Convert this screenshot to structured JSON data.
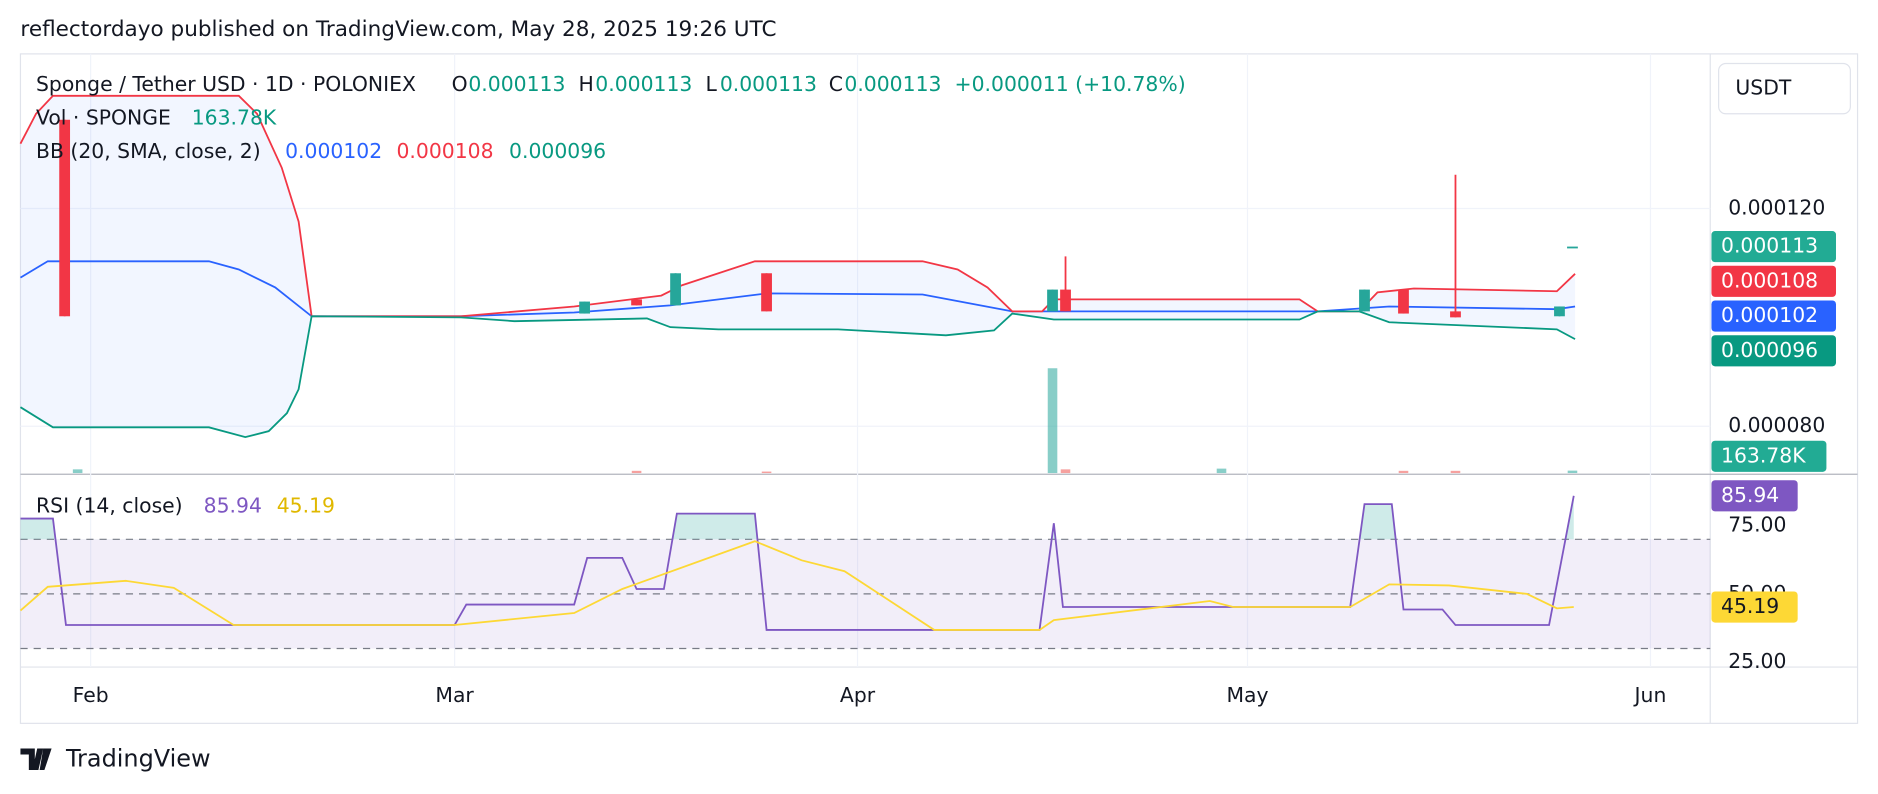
{
  "header": {
    "published": "reflectordayo published on TradingView.com, May 28, 2025 19:26 UTC",
    "logo": "TradingView"
  },
  "chart_data": [
    {
      "type": "candlestick",
      "title": "Sponge / Tether USD · 1D · POLONIEX",
      "currency": "USDT",
      "ohlc_labels": [
        "O",
        "H",
        "L",
        "C"
      ],
      "change": "+0.000011 (+10.78%)",
      "up_color": "#26a69a",
      "down_color": "#f23645",
      "x": [
        -2,
        38,
        42,
        45,
        52,
        74,
        75,
        98,
        101,
        105,
        113,
        114
      ],
      "open": [
        0.0001363,
        0.0001007,
        0.0001033,
        0.0001022,
        0.0001081,
        0.0001011,
        0.0001051,
        0.0001011,
        0.0001051,
        0.0001011,
        0.0001002,
        0.000113
      ],
      "high": [
        0.0001363,
        0.0001029,
        0.0001033,
        0.0001081,
        0.0001081,
        0.0001051,
        0.0001112,
        0.0001051,
        0.0001051,
        0.0001262,
        0.000102,
        0.000113
      ],
      "low": [
        0.0001002,
        0.0001007,
        0.0001022,
        0.0001022,
        0.0001011,
        0.0001011,
        0.0001011,
        0.0001011,
        0.0001007,
        0.0001,
        0.0001002,
        0.000113
      ],
      "close": [
        0.0001002,
        0.0001029,
        0.0001022,
        0.0001081,
        0.0001011,
        0.0001051,
        0.0001011,
        0.0001051,
        0.0001007,
        0.0001,
        0.000102,
        0.000113
      ],
      "xlim": [
        -5.4,
        124.6
      ],
      "xticks": [
        {
          "value": 0,
          "label": "Feb"
        },
        {
          "value": 28,
          "label": "Mar"
        },
        {
          "value": 59,
          "label": "Apr"
        },
        {
          "value": 89,
          "label": "May"
        },
        {
          "value": 120,
          "label": "Jun"
        }
      ],
      "ylim": [
        7.14e-05,
        0.0001484
      ],
      "yticks": [
        {
          "value": 8e-05,
          "label": "0.000080"
        },
        {
          "value": 0.00012,
          "label": "0.000120"
        }
      ],
      "grid": true,
      "volume": {
        "name": "Vol · SPONGE",
        "x": [
          -1,
          42,
          52,
          74,
          75,
          87,
          101,
          105,
          114
        ],
        "values": [
          250000,
          150000,
          100000,
          7100000,
          250000,
          300000,
          150000,
          150000,
          163780
        ],
        "colors": [
          "#26a69a",
          "#ef5350",
          "#ef5350",
          "#26a69a",
          "#ef5350",
          "#26a69a",
          "#ef5350",
          "#ef5350",
          "#26a69a"
        ],
        "last_value_label": "163.78K",
        "vlim": [
          0,
          28400000
        ]
      },
      "bollinger": {
        "name": "BB (20, SMA, close, 2)",
        "fill": "#2962ff",
        "series": [
          {
            "color": "#2962ff",
            "x": [
              -5.4,
              -3.3,
              9.1,
              11.4,
              14.2,
              17.0,
              28.5,
              37.2,
              44.6,
              52.0,
              64.0,
              70.9,
              94.4,
              99.9,
              112.8,
              114.2
            ],
            "values": [
              0.0001073,
              0.0001103,
              0.0001103,
              0.0001088,
              0.0001055,
              0.0001002,
              0.0001002,
              0.0001009,
              0.0001022,
              0.0001044,
              0.0001042,
              0.0001011,
              0.0001011,
              0.000102,
              0.0001015,
              0.000102
            ]
          },
          {
            "color": "#f23645",
            "x": [
              -5.4,
              -4.2,
              -2.9,
              11.4,
              12.8,
              14.7,
              16.0,
              17.0,
              28.5,
              37.2,
              43.9,
              45.5,
              51.1,
              64.0,
              66.7,
              69.0,
              70.9,
              73.2,
              74.1,
              93.0,
              94.4,
              97.6,
              99.0,
              101.8,
              112.8,
              114.2
            ],
            "values": [
              0.0001319,
              0.0001374,
              0.0001407,
              0.0001407,
              0.0001374,
              0.0001275,
              0.0001176,
              0.0001002,
              0.0001002,
              0.000102,
              0.000104,
              0.0001059,
              0.0001103,
              0.0001103,
              0.0001088,
              0.0001055,
              0.0001011,
              0.0001011,
              0.0001033,
              0.0001033,
              0.0001011,
              0.0001011,
              0.0001046,
              0.0001053,
              0.0001048,
              0.000108
            ]
          },
          {
            "color": "#089981",
            "x": [
              -5.4,
              -2.9,
              9.1,
              11.9,
              13.7,
              15.1,
              16.0,
              17.0,
              28.5,
              32.6,
              42.8,
              44.6,
              48.3,
              57.5,
              65.8,
              69.5,
              70.9,
              74.1,
              93.0,
              94.4,
              97.6,
              99.9,
              112.8,
              114.2
            ],
            "values": [
              8.35e-05,
              7.98e-05,
              7.98e-05,
              7.8e-05,
              7.91e-05,
              8.24e-05,
              8.68e-05,
              0.0001002,
              0.0001,
              9.93e-05,
              9.98e-05,
              9.82e-05,
              9.78e-05,
              9.78e-05,
              9.67e-05,
              9.76e-05,
              0.0001007,
              9.96e-05,
              9.96e-05,
              0.0001011,
              0.0001011,
              9.91e-05,
              9.78e-05,
              9.6e-05
            ]
          }
        ]
      }
    },
    {
      "type": "line",
      "title": "RSI (14, close)",
      "series": [
        {
          "color": "#7e57c2",
          "x": [
            -5.4,
            -2.9,
            -1.9,
            10.5,
            28.0,
            28.9,
            37.2,
            38.2,
            40.9,
            42.0,
            44.1,
            45.1,
            51.1,
            52.0,
            64.9,
            73.0,
            74.1,
            74.8,
            87.9,
            96.9,
            98.0,
            100.1,
            101.0,
            104.0,
            105.0,
            112.2,
            114.1
          ],
          "values": [
            77.6,
            77.6,
            38.6,
            38.6,
            38.6,
            46.1,
            46.1,
            63.2,
            63.2,
            51.8,
            51.8,
            79.4,
            79.4,
            36.8,
            36.8,
            36.8,
            75.9,
            45.2,
            45.2,
            45.2,
            82.9,
            82.9,
            44.3,
            44.3,
            38.6,
            38.6,
            85.94
          ]
        },
        {
          "color": "#fdd835",
          "x": [
            -5.4,
            -3.3,
            2.7,
            6.4,
            11.0,
            28.0,
            37.2,
            40.9,
            51.1,
            54.7,
            58.0,
            64.9,
            73.0,
            74.1,
            86.1,
            87.9,
            96.9,
            99.9,
            104.5,
            110.5,
            112.8,
            114.1
          ],
          "values": [
            43.9,
            52.6,
            54.8,
            52.2,
            38.6,
            38.6,
            43.0,
            51.8,
            69.3,
            62.3,
            58.3,
            36.8,
            36.8,
            40.4,
            47.4,
            45.2,
            45.2,
            53.5,
            53.1,
            50.0,
            44.7,
            45.19
          ]
        }
      ],
      "ylim": [
        23.2,
        93.4
      ],
      "yticks": [
        {
          "value": 75,
          "label": "75.00"
        },
        {
          "value": 50,
          "label": "50.00"
        },
        {
          "value": 25,
          "label": "25.00"
        }
      ],
      "bands": [
        70,
        50,
        30
      ],
      "band_fill": "#7e57c2",
      "overbought_fill": "#26a69a"
    }
  ]
}
